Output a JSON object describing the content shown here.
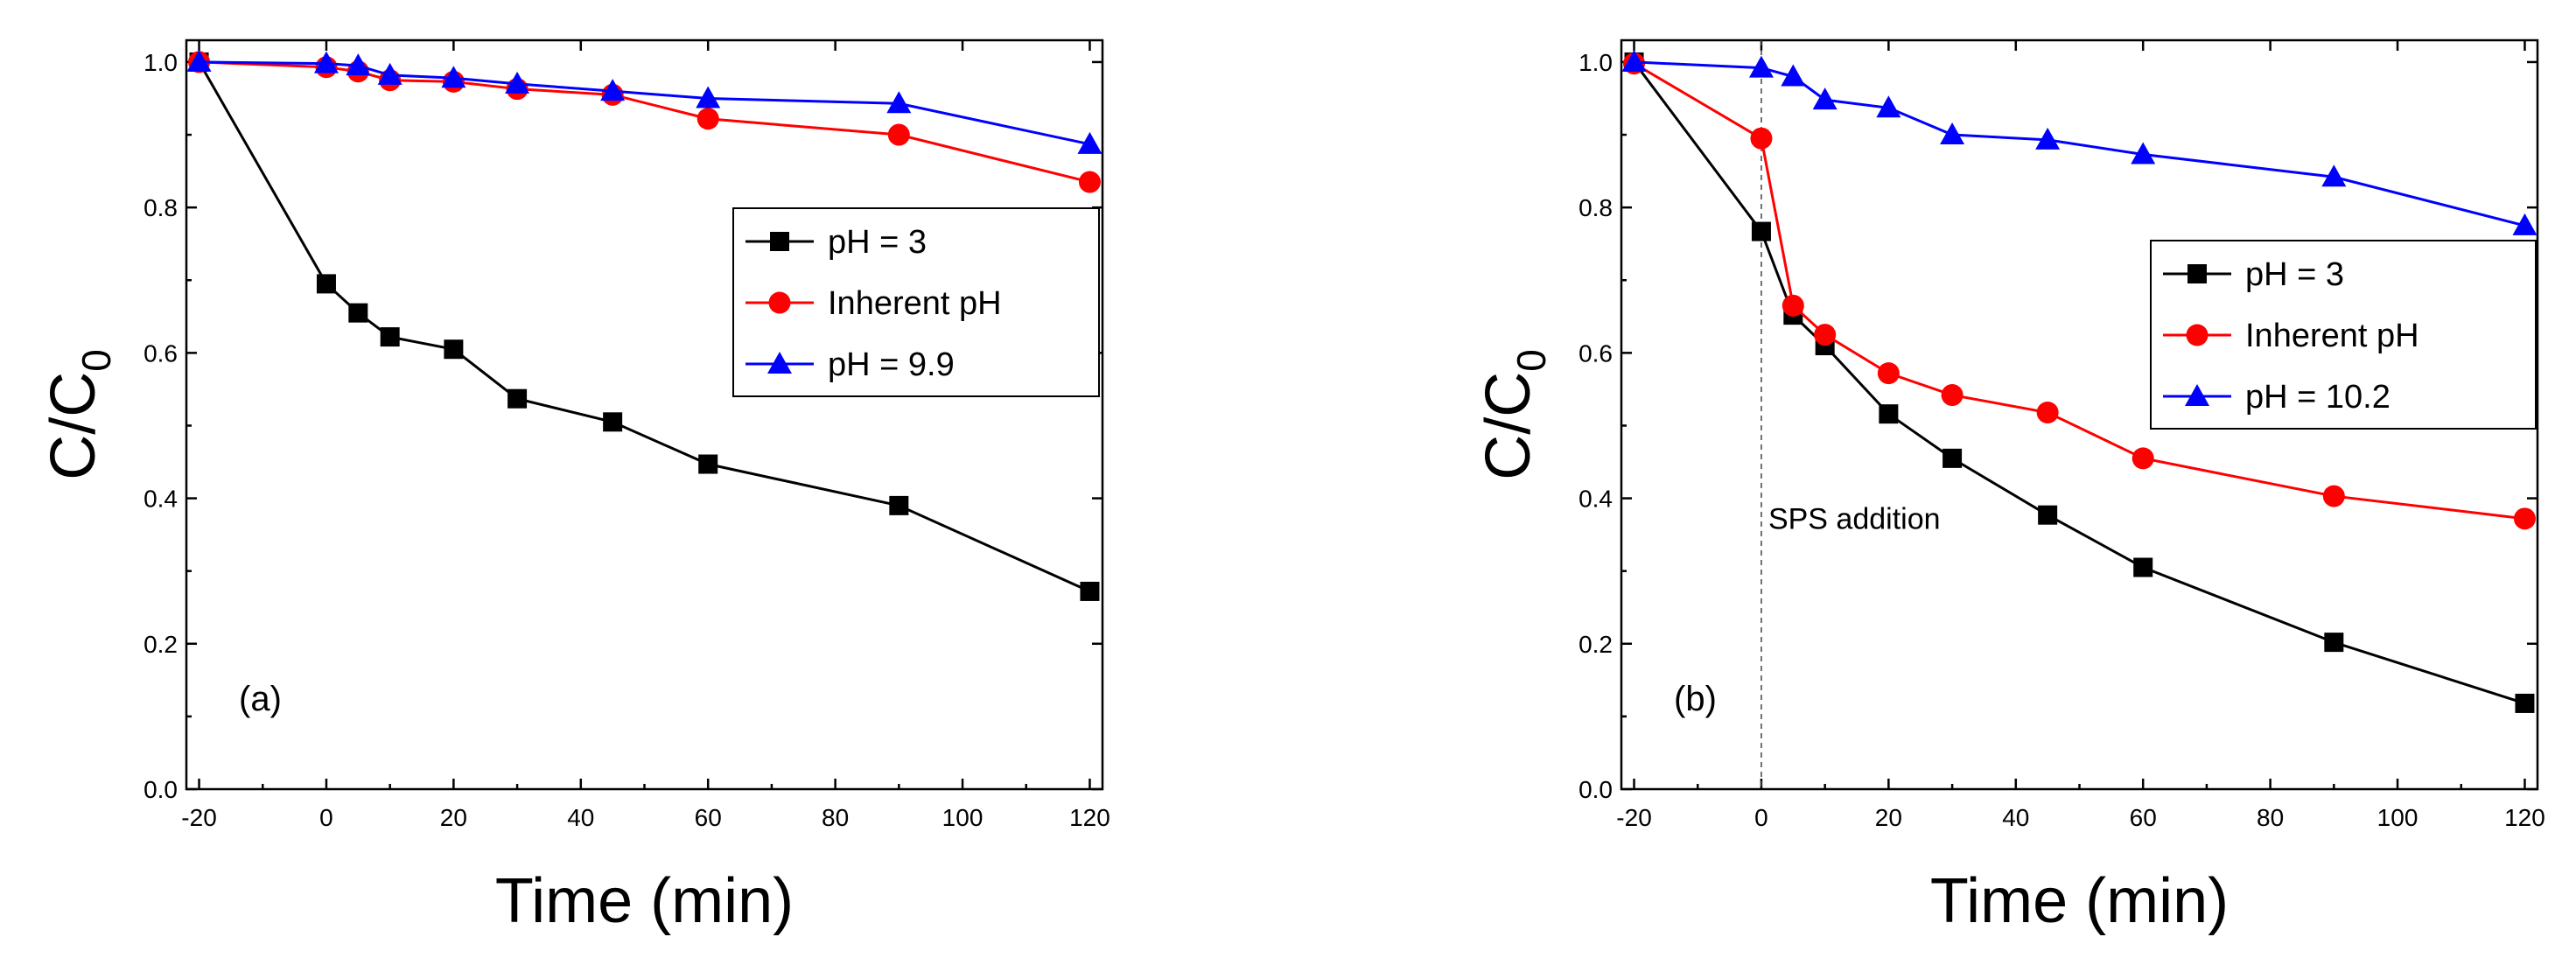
{
  "chart_data": [
    {
      "type": "line",
      "panel_label": "(a)",
      "xlabel": "Time (min)",
      "ylabel_main": "C/C",
      "ylabel_sub": "0",
      "xlim": [
        -22,
        122
      ],
      "ylim": [
        0,
        1.03
      ],
      "xticks": [
        -20,
        0,
        20,
        40,
        60,
        80,
        100,
        120
      ],
      "yticks": [
        "0.0",
        "0.2",
        "0.4",
        "0.6",
        "0.8",
        "1.0"
      ],
      "legend_position": "center-right",
      "annotation": null,
      "series": [
        {
          "name": "pH = 3",
          "color": "#000000",
          "marker": "square",
          "x": [
            -20,
            0,
            5,
            10,
            20,
            30,
            45,
            60,
            90,
            120
          ],
          "y": [
            1.0,
            0.695,
            0.655,
            0.622,
            0.605,
            0.537,
            0.505,
            0.447,
            0.39,
            0.272
          ]
        },
        {
          "name": "Inherent pH",
          "color": "#ff0000",
          "marker": "circle",
          "x": [
            -20,
            0,
            5,
            10,
            20,
            30,
            45,
            60,
            90,
            120
          ],
          "y": [
            1.0,
            0.993,
            0.987,
            0.975,
            0.973,
            0.963,
            0.955,
            0.922,
            0.9,
            0.835
          ]
        },
        {
          "name": "pH = 9.9",
          "color": "#0000ff",
          "marker": "triangle",
          "x": [
            -20,
            0,
            5,
            10,
            20,
            30,
            45,
            60,
            90,
            120
          ],
          "y": [
            1.0,
            0.998,
            0.995,
            0.982,
            0.978,
            0.97,
            0.96,
            0.95,
            0.943,
            0.887
          ]
        }
      ]
    },
    {
      "type": "line",
      "panel_label": "(b)",
      "xlabel": "Time (min)",
      "ylabel_main": "C/C",
      "ylabel_sub": "0",
      "xlim": [
        -22,
        122
      ],
      "ylim": [
        0,
        1.03
      ],
      "xticks": [
        -20,
        0,
        20,
        40,
        60,
        80,
        100,
        120
      ],
      "yticks": [
        "0.0",
        "0.2",
        "0.4",
        "0.6",
        "0.8",
        "1.0"
      ],
      "legend_position": "center-right",
      "annotation": {
        "text": "SPS addition",
        "x": 0,
        "y": 0.37
      },
      "series": [
        {
          "name": "pH = 3",
          "color": "#000000",
          "marker": "square",
          "x": [
            -20,
            0,
            5,
            10,
            20,
            30,
            45,
            60,
            90,
            120
          ],
          "y": [
            1.0,
            0.767,
            0.652,
            0.61,
            0.516,
            0.455,
            0.377,
            0.305,
            0.202,
            0.118
          ]
        },
        {
          "name": "Inherent pH",
          "color": "#ff0000",
          "marker": "circle",
          "x": [
            -20,
            0,
            5,
            10,
            20,
            30,
            45,
            60,
            90,
            120
          ],
          "y": [
            0.998,
            0.895,
            0.665,
            0.625,
            0.572,
            0.542,
            0.518,
            0.455,
            0.403,
            0.372
          ]
        },
        {
          "name": "pH = 10.2",
          "color": "#0000ff",
          "marker": "triangle",
          "x": [
            -20,
            0,
            5,
            10,
            20,
            30,
            45,
            60,
            90,
            120
          ],
          "y": [
            1.0,
            0.992,
            0.98,
            0.948,
            0.937,
            0.9,
            0.893,
            0.873,
            0.842,
            0.775
          ]
        }
      ]
    }
  ]
}
